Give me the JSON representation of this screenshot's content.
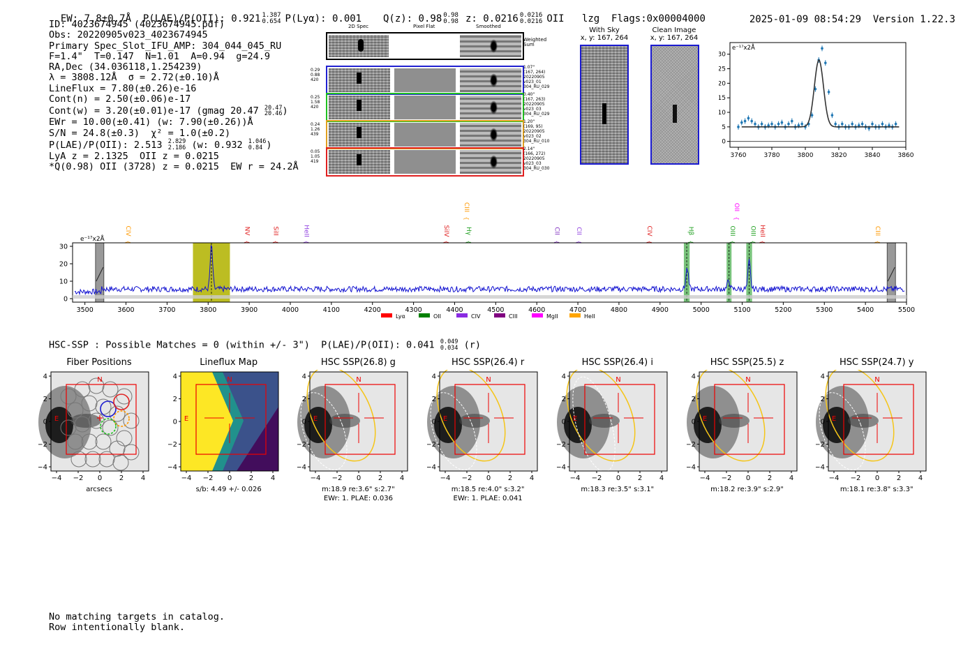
{
  "header": {
    "left": "EW: 7.8±0.7Å  P(LAE)/P(OII): 0.921",
    "plae_hi": "1.387",
    "plae_lo": "0.654",
    "plya": "P(Lyα): 0.001",
    "qz": "Q(z): 0.98",
    "qz_hi": "0.98",
    "qz_lo": "0.98",
    "z": "z: 0.0216",
    "z_hi": "0.0216",
    "z_lo": "0.0216",
    "tail": "OII   lzg  Flags:0x00004000",
    "datetime": "2025-01-09 08:54:29",
    "version": "Version 1.22.3"
  },
  "info": {
    "id": "ID: 4023674945 (4023674945.pdf)",
    "obs": "Obs: 20220905v023_4023674945",
    "primary": "Primary Spec_Slot_IFU_AMP: 304_044_045_RU",
    "fiber": "F=1.4\"  T=0.147  N=1.01  A=0.94  g=24.9",
    "radec": "RA,Dec (34.036118,1.254239)",
    "lambda": "λ = 3808.12Å  σ = 2.72(±0.10)Å",
    "lineflux": "LineFlux = 7.80(±0.26)e-16",
    "contn": "Cont(n) = 2.50(±0.06)e-17",
    "contw": "Cont(w) = 3.20(±0.01)e-17 (gmag 20.47",
    "contw_hi": "20.47",
    "contw_lo": "20.46",
    "ewr": "EWr = 10.00(±0.41) (w: 7.90(±0.26))Å",
    "sn": "S/N = 24.8(±0.3)  χ² = 1.0(±0.2)",
    "plae": "P(LAE)/P(OII): 2.513",
    "plae_hi": "2.829",
    "plae_lo": "2.186",
    "plae_w": "(w: 0.932",
    "plae_w_hi": "1.046",
    "plae_w_lo": "0.84",
    "lya": "LyA z = 2.1325  OII z = 0.0215",
    "q": "*Q(0.98) OII (3728) z = 0.0215  EW r = 24.2Å"
  },
  "cutouts": {
    "col_2d": "2D Spec",
    "col_flat": "Pixel Flat",
    "col_smooth": "Smoothed",
    "weighted": "Weighted\nSum",
    "rows": [
      {
        "left": "0.29\n0.88\n420",
        "right": "1.07\"\n(167, 264)\n20220905\nv023_01\n304_RU_029",
        "color": "#2020d0"
      },
      {
        "left": "0.25\n1.58\n420",
        "right": "0.40\"\n(167, 263)\n20220905\nv023_03\n304_RU_029",
        "color": "#20c020"
      },
      {
        "left": "0.24\n1.26\n439",
        "right": "1.20\"\n(169, 95)\n20220905\nv023_02\n304_RU_010",
        "color": "#e0a020"
      },
      {
        "left": "0.05\n1.05\n419",
        "right": "2.14\"\n(166, 272)\n20220905\nv023_03\n304_RU_030",
        "color": "#e02020"
      }
    ]
  },
  "sky": {
    "with_sky": "With Sky",
    "with_sky_xy": "x, y: 167, 264",
    "clean": "Clean Image",
    "clean_xy": "x, y: 167, 264"
  },
  "colors": {
    "blue": "#1f77b4",
    "frame_blue": "#1a1ad0",
    "olive": "#bcbd22",
    "green_band": "#4caf50"
  },
  "chart_data": [
    {
      "type": "scatter",
      "name": "emission-line-fit",
      "ylabel_scale": "e⁻¹⁷x2Å",
      "xlim": [
        3755,
        3860
      ],
      "ylim": [
        -2,
        34
      ],
      "xticks": [
        3760,
        3780,
        3800,
        3820,
        3840,
        3860
      ],
      "yticks": [
        0,
        5,
        10,
        15,
        20,
        25,
        30
      ],
      "x": [
        3760,
        3762,
        3764,
        3766,
        3768,
        3770,
        3772,
        3774,
        3776,
        3778,
        3780,
        3782,
        3784,
        3786,
        3788,
        3790,
        3792,
        3794,
        3796,
        3798,
        3800,
        3802,
        3804,
        3806,
        3808,
        3810,
        3812,
        3814,
        3816,
        3818,
        3820,
        3822,
        3824,
        3826,
        3828,
        3830,
        3832,
        3834,
        3836,
        3838,
        3840,
        3842,
        3844,
        3846,
        3848,
        3850,
        3852,
        3854
      ],
      "y": [
        5,
        6.5,
        7,
        8,
        7,
        6,
        5,
        6,
        5,
        5.5,
        6,
        5,
        6,
        6.5,
        5,
        6,
        7,
        5,
        5.5,
        6,
        5,
        6,
        9,
        18,
        28,
        32,
        27,
        17,
        9,
        6,
        5,
        6,
        5,
        5,
        6,
        5,
        5.5,
        6,
        5,
        4.5,
        6,
        5,
        5,
        6,
        5,
        5.5,
        5,
        6
      ],
      "fit_center": 3808.12,
      "fit_sigma": 2.72,
      "fit_continuum": 5.0,
      "fit_peak": 28
    },
    {
      "type": "line",
      "name": "full-spectrum",
      "ylabel_scale": "e⁻¹⁷x2Å",
      "xlim": [
        3470,
        5500
      ],
      "ylim": [
        -2,
        32
      ],
      "xticks": [
        3500,
        3600,
        3700,
        3800,
        3900,
        4000,
        4100,
        4200,
        4300,
        4400,
        4500,
        4600,
        4700,
        4800,
        4900,
        5000,
        5100,
        5200,
        5300,
        5400,
        5500
      ],
      "yticks": [
        0,
        10,
        20,
        30
      ],
      "continuum": 5.5,
      "peaks": [
        {
          "x": 3808,
          "amp": 25,
          "sigma": 3
        },
        {
          "x": 4966,
          "amp": 12,
          "sigma": 3
        },
        {
          "x": 5067,
          "amp": 5,
          "sigma": 3
        },
        {
          "x": 5117,
          "amp": 16,
          "sigma": 3
        }
      ],
      "highlight": [
        3763,
        3853
      ],
      "green_bands": [
        [
          4958,
          4972
        ],
        [
          5062,
          5074
        ],
        [
          5110,
          5124
        ]
      ],
      "grey_bars": [
        3536,
        5463
      ],
      "line_labels": [
        {
          "label": "CIV",
          "x": 3596,
          "color": "#ff9900",
          "tier": 1
        },
        {
          "label": "NV",
          "x": 3885,
          "color": "#e02020",
          "tier": 1
        },
        {
          "label": "SiII",
          "x": 3955,
          "color": "#e02020",
          "tier": 1
        },
        {
          "label": "HeII",
          "x": 4030,
          "color": "#9040e0",
          "tier": 1
        },
        {
          "label": "SiIV",
          "x": 4370,
          "color": "#e02020",
          "tier": 1
        },
        {
          "label": "CIII",
          "x": 4420,
          "color": "#ff9900",
          "tier": 2
        },
        {
          "label": "Hγ",
          "x": 4425,
          "color": "#20a020",
          "tier": 1
        },
        {
          "label": "CII",
          "x": 4640,
          "color": "#8030c0",
          "tier": 1
        },
        {
          "label": "CII",
          "x": 4693,
          "color": "#9040e0",
          "tier": 1
        },
        {
          "label": "CIV",
          "x": 4865,
          "color": "#e02020",
          "tier": 1
        },
        {
          "label": "Hβ",
          "x": 4966,
          "color": "#20a020",
          "tier": 1
        },
        {
          "label": "OII",
          "x": 5077,
          "color": "#ff00ff",
          "tier": 2
        },
        {
          "label": "OIII",
          "x": 5067,
          "color": "#20a020",
          "tier": 1
        },
        {
          "label": "OIII",
          "x": 5117,
          "color": "#20a020",
          "tier": 1
        },
        {
          "label": "HeII",
          "x": 5140,
          "color": "#e02020",
          "tier": 1
        },
        {
          "label": "CIII",
          "x": 5420,
          "color": "#ff9900",
          "tier": 1
        }
      ],
      "legend": [
        {
          "label": "Lyα",
          "color": "#ff0000"
        },
        {
          "label": "OII",
          "color": "#008000"
        },
        {
          "label": "CIV",
          "color": "#8a2be2"
        },
        {
          "label": "CIII",
          "color": "#800080"
        },
        {
          "label": "MgII",
          "color": "#ff00ff"
        },
        {
          "label": "HeII",
          "color": "#ffa500"
        }
      ]
    }
  ],
  "hsc": {
    "summary": "HSC-SSP : Possible Matches = 0 (within +/- 3\")  P(LAE)/P(OII): 0.041",
    "summary_hi": "0.049",
    "summary_lo": "0.034",
    "summary_band": "(r)",
    "axis_ticks": [
      "−4",
      "−2",
      "0",
      "2",
      "4"
    ],
    "panels": [
      {
        "title": "Fiber Positions",
        "cap1": "arcsecs",
        "cap2": ""
      },
      {
        "title": "Lineflux Map",
        "cap1": "s/b: 4.49 +/- 0.026",
        "cap2": ""
      },
      {
        "title": "HSC SSP(26.8) g",
        "cap1": "m:18.9  re:3.6\"  s:2.7\"",
        "cap2": "EWr: 1. PLAE: 0.036"
      },
      {
        "title": "HSC SSP(26.4) r",
        "cap1": "m:18.5  re:4.0\"  s:3.2\"",
        "cap2": "EWr: 1. PLAE: 0.041"
      },
      {
        "title": "HSC SSP(26.4) i",
        "cap1": "m:18.3  re:3.5\"  s:3.1\"",
        "cap2": ""
      },
      {
        "title": "HSC SSP(25.5) z",
        "cap1": "m:18.2  re:3.9\"  s:2.9\"",
        "cap2": ""
      },
      {
        "title": "HSC SSP(24.7) y",
        "cap1": "m:18.1  re:3.8\"  s:3.3\"",
        "cap2": ""
      }
    ],
    "n_label": "N",
    "e_label": "E"
  },
  "footer": {
    "line1": "No matching targets in catalog.",
    "line2": "Row intentionally blank."
  }
}
